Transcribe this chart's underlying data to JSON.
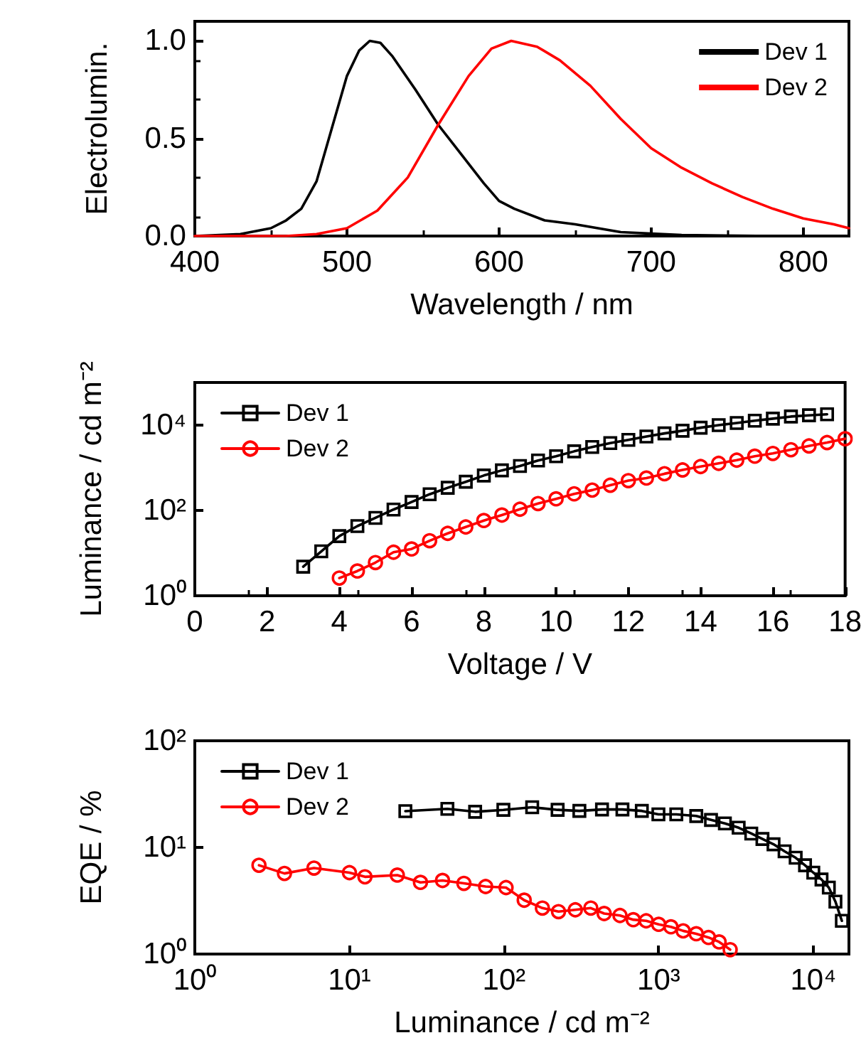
{
  "chart_data": [
    {
      "type": "line",
      "xlabel": "Wavelength / nm",
      "ylabel": "Electrolumin.",
      "xlim": [
        400,
        830
      ],
      "ylim": [
        0,
        1.1
      ],
      "xticks": [
        400,
        500,
        600,
        700,
        800
      ],
      "yticks": [
        {
          "value": 0,
          "label": "0.0"
        },
        {
          "value": 0.5,
          "label": "0.5"
        },
        {
          "value": 1,
          "label": "1.0"
        }
      ],
      "grid": false,
      "legend": "top right",
      "marker": "none",
      "line_style": "solid",
      "series": [
        {
          "name": "Dev 1",
          "color": "#000000",
          "x": [
            400,
            430,
            450,
            460,
            470,
            480,
            490,
            500,
            508,
            515,
            522,
            530,
            545,
            560,
            575,
            590,
            600,
            610,
            630,
            650,
            680,
            720,
            780,
            830
          ],
          "values": [
            0,
            0.01,
            0.04,
            0.08,
            0.14,
            0.28,
            0.55,
            0.82,
            0.95,
            1.0,
            0.99,
            0.92,
            0.75,
            0.57,
            0.42,
            0.27,
            0.18,
            0.14,
            0.08,
            0.06,
            0.02,
            0.005,
            0,
            0
          ]
        },
        {
          "name": "Dev 2",
          "color": "#ff0000",
          "x": [
            400,
            460,
            480,
            500,
            520,
            540,
            560,
            580,
            595,
            608,
            625,
            640,
            660,
            680,
            700,
            720,
            740,
            760,
            780,
            800,
            820,
            830
          ],
          "values": [
            0,
            0,
            0.01,
            0.04,
            0.13,
            0.3,
            0.57,
            0.82,
            0.96,
            1.0,
            0.97,
            0.9,
            0.77,
            0.6,
            0.45,
            0.35,
            0.27,
            0.2,
            0.14,
            0.09,
            0.06,
            0.04
          ]
        }
      ]
    },
    {
      "type": "line",
      "xlabel": "Voltage / V",
      "ylabel": "Luminance / cd m⁻²",
      "xlim": [
        0,
        18
      ],
      "ylim": [
        1,
        100000
      ],
      "xticks": [
        0,
        2,
        4,
        6,
        8,
        10,
        12,
        14,
        16,
        18
      ],
      "yticks": [
        {
          "value": 1,
          "label": "10⁰"
        },
        {
          "value": 100,
          "label": "10²"
        },
        {
          "value": 10000,
          "label": "10⁴"
        }
      ],
      "log": "y",
      "grid": false,
      "legend": "top left",
      "line_style": "solid",
      "series": [
        {
          "name": "Dev 1",
          "color": "#000000",
          "marker": "square",
          "x": [
            3,
            3.5,
            4,
            4.5,
            5,
            5.5,
            6,
            6.5,
            7,
            7.5,
            8,
            8.5,
            9,
            9.5,
            10,
            10.5,
            11,
            11.5,
            12,
            12.5,
            13,
            13.5,
            14,
            14.5,
            15,
            15.5,
            16,
            16.5,
            17,
            17.5
          ],
          "values": [
            4.8,
            11,
            25,
            43,
            67,
            105,
            158,
            240,
            340,
            470,
            660,
            870,
            1100,
            1480,
            1870,
            2430,
            3080,
            3800,
            4500,
            5400,
            6400,
            7400,
            8700,
            10000,
            11200,
            12700,
            14200,
            15900,
            17000,
            18000
          ]
        },
        {
          "name": "Dev 2",
          "color": "#ff0000",
          "marker": "circle",
          "x": [
            4,
            4.5,
            5,
            5.5,
            6,
            6.5,
            7,
            7.5,
            8,
            8.5,
            9,
            9.5,
            10,
            10.5,
            11,
            11.5,
            12,
            12.5,
            13,
            13.5,
            14,
            14.5,
            15,
            15.5,
            16,
            16.5,
            17,
            17.5,
            18
          ],
          "values": [
            2.6,
            3.8,
            6,
            10.5,
            12.5,
            19.5,
            29,
            41,
            58,
            78,
            107,
            145,
            187,
            245,
            300,
            390,
            500,
            575,
            725,
            890,
            1070,
            1270,
            1510,
            1870,
            2170,
            2650,
            3250,
            3900,
            4800
          ]
        }
      ]
    },
    {
      "type": "line",
      "xlabel": "Luminance / cd m⁻²",
      "ylabel": "EQE / %",
      "xlim": [
        1,
        17000
      ],
      "ylim": [
        1,
        100
      ],
      "xticks": [
        {
          "value": 1,
          "label": "10⁰"
        },
        {
          "value": 10,
          "label": "10¹"
        },
        {
          "value": 100,
          "label": "10²"
        },
        {
          "value": 1000,
          "label": "10³"
        },
        {
          "value": 10000,
          "label": "10⁴"
        }
      ],
      "yticks": [
        {
          "value": 1,
          "label": "10⁰"
        },
        {
          "value": 10,
          "label": "10¹"
        },
        {
          "value": 100,
          "label": "10²"
        }
      ],
      "log": "xy",
      "grid": false,
      "legend": "top left",
      "line_style": "solid",
      "series": [
        {
          "name": "Dev 1",
          "color": "#000000",
          "marker": "square",
          "x": [
            23,
            43,
            65,
            99,
            152,
            222,
            307,
            430,
            583,
            778,
            996,
            1300,
            1750,
            2180,
            2680,
            3290,
            3970,
            4690,
            5530,
            6520,
            7690,
            8840,
            10000,
            11300,
            12600,
            13900,
            15300
          ],
          "values": [
            21.9,
            23,
            21.6,
            22.5,
            23.8,
            22.5,
            22,
            22.7,
            22.7,
            22,
            20.4,
            20.4,
            19.7,
            18.1,
            16.8,
            15.3,
            13.5,
            12,
            10.7,
            9.2,
            8,
            6.8,
            5.8,
            5,
            4.2,
            3.1,
            2.05
          ]
        },
        {
          "name": "Dev 2",
          "color": "#ff0000",
          "marker": "circle",
          "x": [
            2.6,
            3.8,
            5.9,
            10,
            12.6,
            20.4,
            28.8,
            40,
            55,
            76,
            103,
            135,
            177,
            225,
            289,
            364,
            444,
            562,
            685,
            830,
            1000,
            1200,
            1440,
            1750,
            2100,
            2460,
            2900
          ],
          "values": [
            6.8,
            5.7,
            6.4,
            5.8,
            5.3,
            5.5,
            4.7,
            4.9,
            4.6,
            4.3,
            4.2,
            3.2,
            2.7,
            2.5,
            2.6,
            2.7,
            2.4,
            2.3,
            2.1,
            2.05,
            1.9,
            1.8,
            1.65,
            1.55,
            1.43,
            1.3,
            1.1
          ]
        }
      ]
    }
  ]
}
